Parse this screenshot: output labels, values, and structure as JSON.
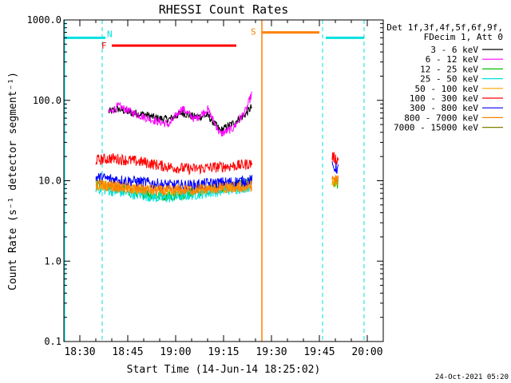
{
  "chart_data": {
    "type": "line",
    "title": "RHESSI Count Rates",
    "xlabel": "Start Time (14-Jun-14 18:25:02)",
    "ylabel": "Count Rate (s⁻¹ detector segment⁻¹)",
    "yscale": "log",
    "ylim": [
      0.1,
      1000
    ],
    "xlim": [
      "18:25",
      "20:05"
    ],
    "x_unit": "UT time (hh:mm)",
    "yticks": [
      "0.1",
      "1.0",
      "10.0",
      "100.0",
      "1000.0"
    ],
    "xticks": [
      "18:30",
      "18:45",
      "19:00",
      "19:15",
      "19:30",
      "19:45",
      "20:00"
    ],
    "grid": false,
    "legend_header": [
      "Det 1f,3f,4f,5f,6f,9f,",
      "FDecim 1, Att 0"
    ],
    "legend_position": "right",
    "series": [
      {
        "name": "3 - 6 keV",
        "color": "#000000",
        "segments": [
          {
            "x": [
              "18:39",
              "18:42",
              "18:46",
              "18:50",
              "18:54",
              "18:58",
              "19:02",
              "19:06",
              "19:10",
              "19:14",
              "19:18",
              "19:22",
              "19:24"
            ],
            "y": [
              72,
              78,
              70,
              67,
              60,
              58,
              70,
              62,
              65,
              42,
              52,
              68,
              85
            ]
          }
        ]
      },
      {
        "name": "6 - 12 keV",
        "color": "#ff00ff",
        "segments": [
          {
            "x": [
              "18:39",
              "18:42",
              "18:46",
              "18:50",
              "18:54",
              "18:58",
              "19:02",
              "19:06",
              "19:10",
              "19:14",
              "19:18",
              "19:22",
              "19:24"
            ],
            "y": [
              70,
              85,
              72,
              62,
              55,
              50,
              80,
              58,
              78,
              38,
              45,
              75,
              125
            ]
          }
        ]
      },
      {
        "name": "12 - 25 keV",
        "color": "#00c000",
        "segments": [
          {
            "x": [
              "18:35",
              "18:40",
              "18:45",
              "18:50",
              "18:55",
              "19:00",
              "19:05",
              "19:10",
              "19:15",
              "19:20",
              "19:24"
            ],
            "y": [
              9,
              8.2,
              7.6,
              7.1,
              6.5,
              6.7,
              7.2,
              7.6,
              8.3,
              8.8,
              9.5
            ]
          },
          {
            "x": [
              "19:49",
              "19:51"
            ],
            "y": [
              10,
              9
            ]
          }
        ]
      },
      {
        "name": "25 - 50 keV",
        "color": "#00e0e0",
        "segments": [
          {
            "x": [
              "18:35",
              "18:40",
              "18:45",
              "18:50",
              "18:55",
              "19:00",
              "19:05",
              "19:10",
              "19:15",
              "19:20",
              "19:24"
            ],
            "y": [
              8.2,
              7.5,
              7,
              6.6,
              6.1,
              6.3,
              6.7,
              7.1,
              7.6,
              8.1,
              8.6
            ]
          }
        ]
      },
      {
        "name": "50 - 100 keV",
        "color": "#ffa500",
        "segments": [
          {
            "x": [
              "18:35",
              "18:40",
              "18:45",
              "18:50",
              "18:55",
              "19:00",
              "19:05",
              "19:10",
              "19:15",
              "19:20",
              "19:24"
            ],
            "y": [
              8.8,
              8.4,
              8,
              7.8,
              7.6,
              7.7,
              7.8,
              8,
              8.2,
              8.4,
              8.6
            ]
          },
          {
            "x": [
              "19:49",
              "19:51"
            ],
            "y": [
              9.5,
              9
            ]
          }
        ]
      },
      {
        "name": "100 - 300 keV",
        "color": "#ff0000",
        "segments": [
          {
            "x": [
              "18:35",
              "18:40",
              "18:45",
              "18:50",
              "18:55",
              "19:00",
              "19:05",
              "19:10",
              "19:15",
              "19:20",
              "19:24"
            ],
            "y": [
              18,
              19,
              18,
              17,
              15.5,
              14.5,
              14,
              14.5,
              15,
              15.5,
              16.5
            ]
          },
          {
            "x": [
              "19:49",
              "19:51"
            ],
            "y": [
              20,
              18
            ]
          }
        ]
      },
      {
        "name": "300 - 800 keV",
        "color": "#0000ff",
        "segments": [
          {
            "x": [
              "18:35",
              "18:40",
              "18:45",
              "18:50",
              "18:55",
              "19:00",
              "19:05",
              "19:10",
              "19:15",
              "19:20",
              "19:24"
            ],
            "y": [
              11,
              10.5,
              10,
              9.6,
              9,
              8.8,
              8.8,
              9.2,
              9.5,
              9.8,
              10.2
            ]
          },
          {
            "x": [
              "19:49",
              "19:51"
            ],
            "y": [
              15,
              14
            ]
          }
        ]
      },
      {
        "name": "800 - 7000 keV",
        "color": "#ff8000",
        "segments": [
          {
            "x": [
              "18:35",
              "18:40",
              "18:45",
              "18:50",
              "18:55",
              "19:00",
              "19:05",
              "19:10",
              "19:15",
              "19:20",
              "19:24"
            ],
            "y": [
              9,
              8.6,
              8.1,
              7.8,
              7.5,
              7.6,
              7.7,
              7.9,
              8.1,
              8.3,
              8.5
            ]
          },
          {
            "x": [
              "19:49",
              "19:51"
            ],
            "y": [
              11,
              10
            ]
          }
        ]
      },
      {
        "name": "7000 - 15000 keV",
        "color": "#808000",
        "segments": []
      }
    ],
    "annotations": [
      {
        "label": "N",
        "color": "#00e0e0",
        "kind": "night",
        "bars": [
          [
            "18:25",
            "18:38"
          ],
          [
            "19:47",
            "19:59"
          ]
        ],
        "level": 600,
        "dashed_lines": [
          "18:37",
          "19:46",
          "19:59"
        ]
      },
      {
        "label": "F",
        "color": "#ff0000",
        "kind": "flare",
        "bars": [
          [
            "18:40",
            "19:19"
          ]
        ],
        "level": 480
      },
      {
        "label": "S",
        "color": "#ff8000",
        "kind": "saa",
        "bars": [
          [
            "19:27",
            "19:45"
          ]
        ],
        "level": 700,
        "solid_lines": [
          "19:27"
        ]
      }
    ],
    "footer_date": "24-Oct-2021 05:20"
  }
}
